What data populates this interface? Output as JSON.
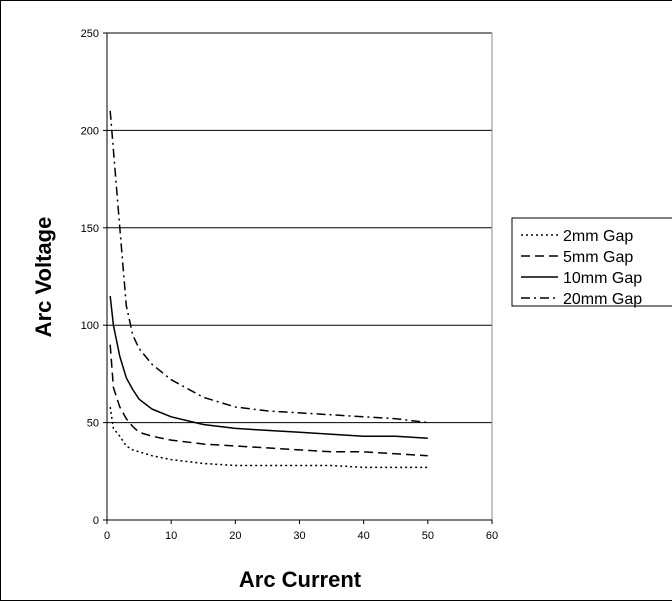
{
  "chart_data": {
    "type": "line",
    "title": "",
    "xlabel": "Arc Current",
    "ylabel": "Arc Voltage",
    "xlim": [
      0,
      60
    ],
    "ylim": [
      0,
      250
    ],
    "x_ticks": [
      "0",
      "10",
      "20",
      "30",
      "40",
      "50",
      "60"
    ],
    "y_ticks": [
      "0",
      "50",
      "100",
      "150",
      "200",
      "250"
    ],
    "grid": "horizontal",
    "legend_position": "right",
    "series": [
      {
        "name": "2mm Gap",
        "style": "dotted",
        "color": "#000000",
        "x": [
          0.5,
          1,
          2,
          3,
          4,
          5,
          7,
          10,
          15,
          20,
          25,
          30,
          35,
          40,
          45,
          50
        ],
        "y": [
          58,
          47,
          43,
          38,
          36,
          35,
          33,
          31,
          29,
          28,
          28,
          28,
          28,
          27,
          27,
          27
        ]
      },
      {
        "name": "5mm Gap",
        "style": "dashed",
        "color": "#000000",
        "x": [
          0.5,
          1,
          2,
          3,
          4,
          5,
          7,
          10,
          15,
          20,
          25,
          30,
          35,
          40,
          45,
          50
        ],
        "y": [
          90,
          68,
          58,
          52,
          48,
          45,
          43,
          41,
          39,
          38,
          37,
          36,
          35,
          35,
          34,
          33
        ]
      },
      {
        "name": "10mm Gap",
        "style": "solid",
        "color": "#000000",
        "x": [
          0.5,
          1,
          2,
          3,
          4,
          5,
          7,
          10,
          15,
          20,
          25,
          30,
          35,
          40,
          45,
          50
        ],
        "y": [
          115,
          100,
          84,
          73,
          67,
          62,
          57,
          53,
          49,
          47,
          46,
          45,
          44,
          43,
          43,
          42
        ]
      },
      {
        "name": "20mm Gap",
        "style": "dash-dot",
        "color": "#000000",
        "x": [
          0.5,
          1,
          2,
          3,
          4,
          5,
          7,
          10,
          15,
          20,
          25,
          30,
          35,
          40,
          45,
          50
        ],
        "y": [
          210,
          190,
          150,
          110,
          95,
          88,
          80,
          72,
          63,
          58,
          56,
          55,
          54,
          53,
          52,
          50
        ]
      }
    ]
  }
}
